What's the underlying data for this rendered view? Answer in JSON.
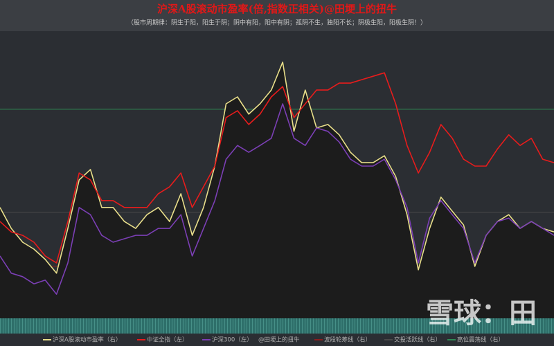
{
  "chart_data": {
    "type": "line",
    "title": "沪深A股滚动市盈率(倍,指数正相关)@田埂上的扭牛",
    "subtitle": "（股市周期律：阴生于阳，阳生于阴；阴中有阳，阳中有阴；孤阴不生，独阳不长；阴极生阳，阳极生阴！）",
    "categories": [
      null,
      null,
      null,
      null,
      null,
      null,
      null,
      null,
      null,
      null,
      null,
      null,
      null,
      null,
      null,
      null,
      null,
      null,
      null,
      null,
      null,
      null,
      null,
      null,
      null,
      null,
      null,
      null,
      null,
      null,
      null,
      null,
      null,
      null,
      null,
      null,
      null,
      null,
      null,
      null,
      null,
      null,
      null,
      null,
      null,
      null,
      null,
      null,
      null,
      null
    ],
    "ylim": [
      0,
      100
    ],
    "series": [
      {
        "name": "沪深A股滚动市盈率（右）",
        "color": "#e8de8a",
        "area_color": "#1c1c1c",
        "values": [
          38.6,
          31.3,
          26.5,
          24.1,
          20.5,
          15.7,
          31.3,
          48.2,
          51.8,
          38.6,
          38.6,
          33.7,
          31.3,
          36.1,
          38.6,
          33.7,
          43.4,
          28.9,
          38.6,
          53.0,
          74.7,
          77.1,
          71.1,
          74.7,
          79.5,
          89.2,
          65.1,
          79.5,
          66.3,
          67.5,
          63.9,
          57.8,
          54.2,
          54.2,
          56.6,
          49.4,
          36.1,
          16.9,
          31.3,
          42.2,
          37.3,
          32.5,
          18.1,
          28.9,
          33.7,
          36.1,
          31.3,
          33.7,
          31.3,
          30.1
        ]
      },
      {
        "name": "中证全指（左）",
        "color": "#e81c1c",
        "values": [
          33.7,
          30.1,
          28.9,
          26.5,
          21.7,
          19.3,
          33.7,
          50.6,
          48.2,
          41.0,
          41.0,
          38.6,
          38.6,
          38.6,
          43.4,
          45.8,
          50.6,
          38.6,
          45.8,
          53.0,
          69.9,
          72.3,
          67.5,
          71.1,
          77.1,
          80.7,
          69.9,
          74.7,
          79.5,
          79.5,
          81.9,
          81.9,
          83.1,
          84.3,
          85.5,
          74.7,
          60.2,
          50.6,
          57.8,
          67.5,
          62.7,
          55.4,
          53.0,
          53.0,
          59.0,
          63.9,
          60.2,
          62.7,
          55.4,
          54.2
        ]
      },
      {
        "name": "沪深300（左）",
        "color": "#7b3fb5",
        "values": [
          21.7,
          15.7,
          14.5,
          12.0,
          13.3,
          8.4,
          19.3,
          38.6,
          36.1,
          28.9,
          26.5,
          27.7,
          28.9,
          28.9,
          31.3,
          31.3,
          36.1,
          21.7,
          31.3,
          41.0,
          55.4,
          60.2,
          57.8,
          60.2,
          62.7,
          74.7,
          62.7,
          60.2,
          66.3,
          65.1,
          61.4,
          55.4,
          53.0,
          53.0,
          55.4,
          48.2,
          38.6,
          19.3,
          34.9,
          41.0,
          36.1,
          31.3,
          19.3,
          28.9,
          33.7,
          34.9,
          31.3,
          33.7,
          31.3,
          28.9
        ]
      }
    ],
    "reference_lines": [
      {
        "name": "波段轮筹线（右）",
        "color": "#8a1f1f",
        "value": 18.1
      },
      {
        "name": "交投活跃线（右）",
        "color": "#4a4a4a",
        "value": 36.9
      },
      {
        "name": "高位震荡线（右）",
        "color": "#2f8a55",
        "value": 72.8
      }
    ],
    "legend_note": "@田埂上的扭牛",
    "watermark": "雪球：田"
  }
}
